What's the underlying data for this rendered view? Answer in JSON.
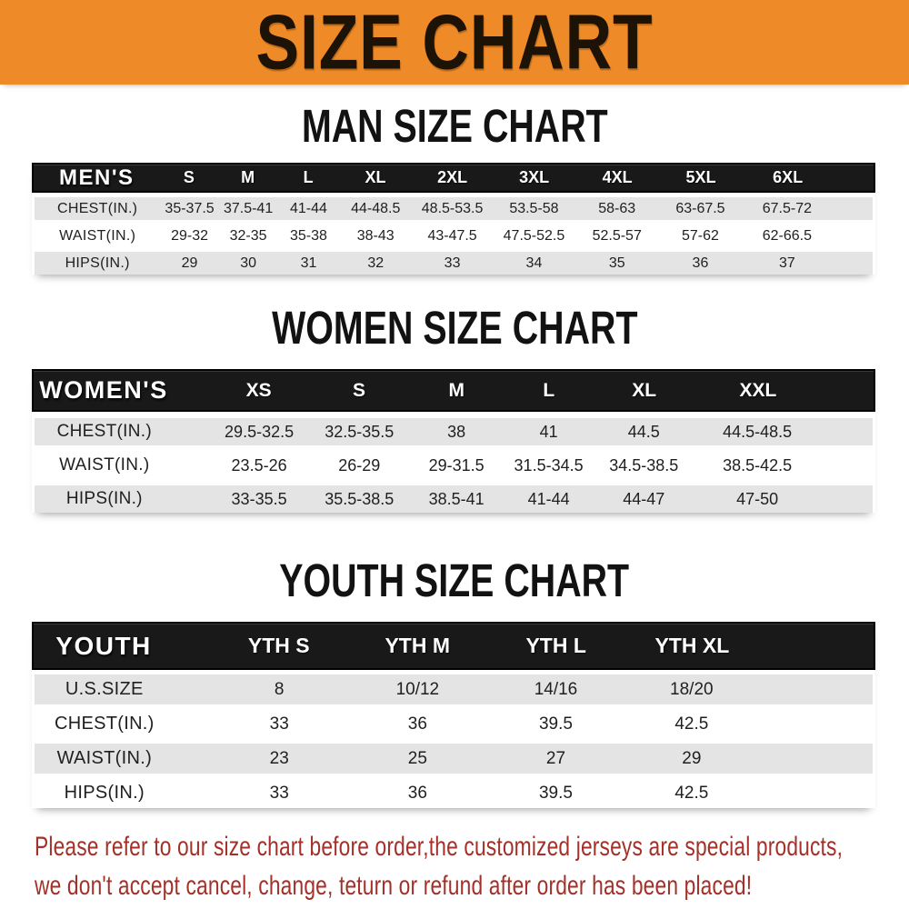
{
  "banner": {
    "title": "SIZE CHART",
    "bg_color": "#ee8b28",
    "text_color": "#1d1206"
  },
  "sections": [
    {
      "id": "men",
      "heading": "MAN SIZE CHART",
      "corner_label": "MEN'S",
      "size_headers": [
        "S",
        "M",
        "L",
        "XL",
        "2XL",
        "3XL",
        "4XL",
        "5XL",
        "6XL"
      ],
      "rows": [
        {
          "label": "CHEST(IN.)",
          "values": [
            "35-37.5",
            "37.5-41",
            "41-44",
            "44-48.5",
            "48.5-53.5",
            "53.5-58",
            "58-63",
            "63-67.5",
            "67.5-72"
          ]
        },
        {
          "label": "WAIST(IN.)",
          "values": [
            "29-32",
            "32-35",
            "35-38",
            "38-43",
            "43-47.5",
            "47.5-52.5",
            "52.5-57",
            "57-62",
            "62-66.5"
          ]
        },
        {
          "label": "HIPS(IN.)",
          "values": [
            "29",
            "30",
            "31",
            "32",
            "33",
            "34",
            "35",
            "36",
            "37"
          ]
        }
      ]
    },
    {
      "id": "women",
      "heading": "WOMEN SIZE CHART",
      "corner_label": "WOMEN'S",
      "size_headers": [
        "XS",
        "S",
        "M",
        "L",
        "XL",
        "XXL"
      ],
      "rows": [
        {
          "label": "CHEST(IN.)",
          "values": [
            "29.5-32.5",
            "32.5-35.5",
            "38",
            "41",
            "44.5",
            "44.5-48.5"
          ]
        },
        {
          "label": "WAIST(IN.)",
          "values": [
            "23.5-26",
            "26-29",
            "29-31.5",
            "31.5-34.5",
            "34.5-38.5",
            "38.5-42.5"
          ]
        },
        {
          "label": "HIPS(IN.)",
          "values": [
            "33-35.5",
            "35.5-38.5",
            "38.5-41",
            "41-44",
            "44-47",
            "47-50"
          ]
        }
      ]
    },
    {
      "id": "youth",
      "heading": "YOUTH SIZE CHART",
      "corner_label": "YOUTH",
      "size_headers": [
        "YTH S",
        "YTH M",
        "YTH L",
        "YTH XL"
      ],
      "rows": [
        {
          "label": "U.S.SIZE",
          "values": [
            "8",
            "10/12",
            "14/16",
            "18/20"
          ]
        },
        {
          "label": "CHEST(IN.)",
          "values": [
            "33",
            "36",
            "39.5",
            "42.5"
          ]
        },
        {
          "label": "WAIST(IN.)",
          "values": [
            "23",
            "25",
            "27",
            "29"
          ]
        },
        {
          "label": "HIPS(IN.)",
          "values": [
            "33",
            "36",
            "39.5",
            "42.5"
          ]
        }
      ]
    }
  ],
  "footer": {
    "lines": [
      "Please refer to our size chart before order,the customized jerseys are special products,",
      "we don't accept cancel, change, teturn or refund after order has been placed!"
    ],
    "color": "#a33129"
  },
  "colors": {
    "banner_orange": "#ee8b28",
    "header_black": "#191919",
    "row_gray": "#e4e4e4",
    "text_dark": "#1f1f1f",
    "footer_red": "#a33129"
  }
}
